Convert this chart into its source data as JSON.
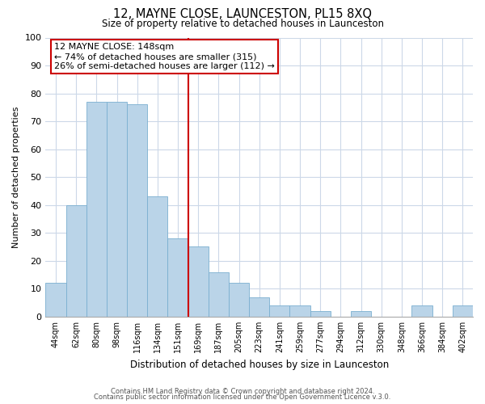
{
  "title": "12, MAYNE CLOSE, LAUNCESTON, PL15 8XQ",
  "subtitle": "Size of property relative to detached houses in Launceston",
  "xlabel": "Distribution of detached houses by size in Launceston",
  "ylabel": "Number of detached properties",
  "bar_labels": [
    "44sqm",
    "62sqm",
    "80sqm",
    "98sqm",
    "116sqm",
    "134sqm",
    "151sqm",
    "169sqm",
    "187sqm",
    "205sqm",
    "223sqm",
    "241sqm",
    "259sqm",
    "277sqm",
    "294sqm",
    "312sqm",
    "330sqm",
    "348sqm",
    "366sqm",
    "384sqm",
    "402sqm"
  ],
  "bar_values": [
    12,
    40,
    77,
    77,
    76,
    43,
    28,
    25,
    16,
    12,
    7,
    4,
    4,
    2,
    0,
    2,
    0,
    0,
    4,
    0,
    4
  ],
  "bar_color": "#bad4e8",
  "bar_edge_color": "#7aafd0",
  "vline_index": 6,
  "vline_color": "#cc0000",
  "ylim": [
    0,
    100
  ],
  "yticks": [
    0,
    10,
    20,
    30,
    40,
    50,
    60,
    70,
    80,
    90,
    100
  ],
  "annotation_title": "12 MAYNE CLOSE: 148sqm",
  "annotation_line1": "← 74% of detached houses are smaller (315)",
  "annotation_line2": "26% of semi-detached houses are larger (112) →",
  "annotation_box_color": "#ffffff",
  "annotation_box_edge": "#cc0000",
  "footer_line1": "Contains HM Land Registry data © Crown copyright and database right 2024.",
  "footer_line2": "Contains public sector information licensed under the Open Government Licence v.3.0.",
  "background_color": "#ffffff",
  "grid_color": "#ccd8e8"
}
